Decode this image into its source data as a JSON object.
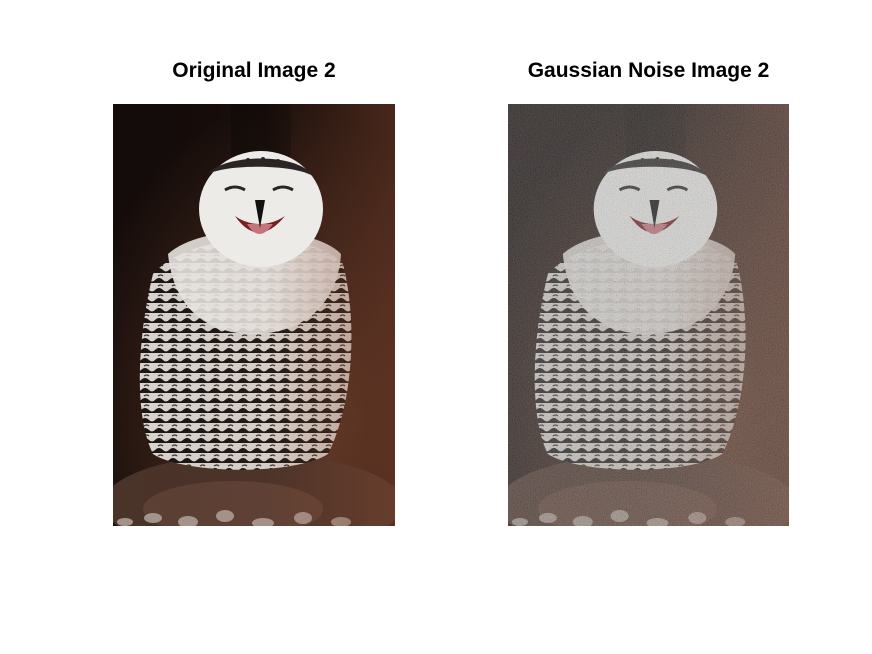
{
  "panels": [
    {
      "title": "Original Image 2",
      "subject": "snowy owl with open beak, white face and black-barred breast feathers, perched on a rock against a dark background",
      "noise": "none"
    },
    {
      "title": "Gaussian Noise Image 2",
      "subject": "the same snowy owl photograph with additive Gaussian noise",
      "noise": "gaussian"
    }
  ],
  "colors": {
    "background": "#ffffff",
    "title_text": "#000000",
    "photo_dark": "#1a0f0c",
    "photo_warm": "#6b3f2c",
    "owl_white": "#ecebe8",
    "feather_bar": "#1b1716",
    "beak_mouth": "#7a1e22"
  }
}
